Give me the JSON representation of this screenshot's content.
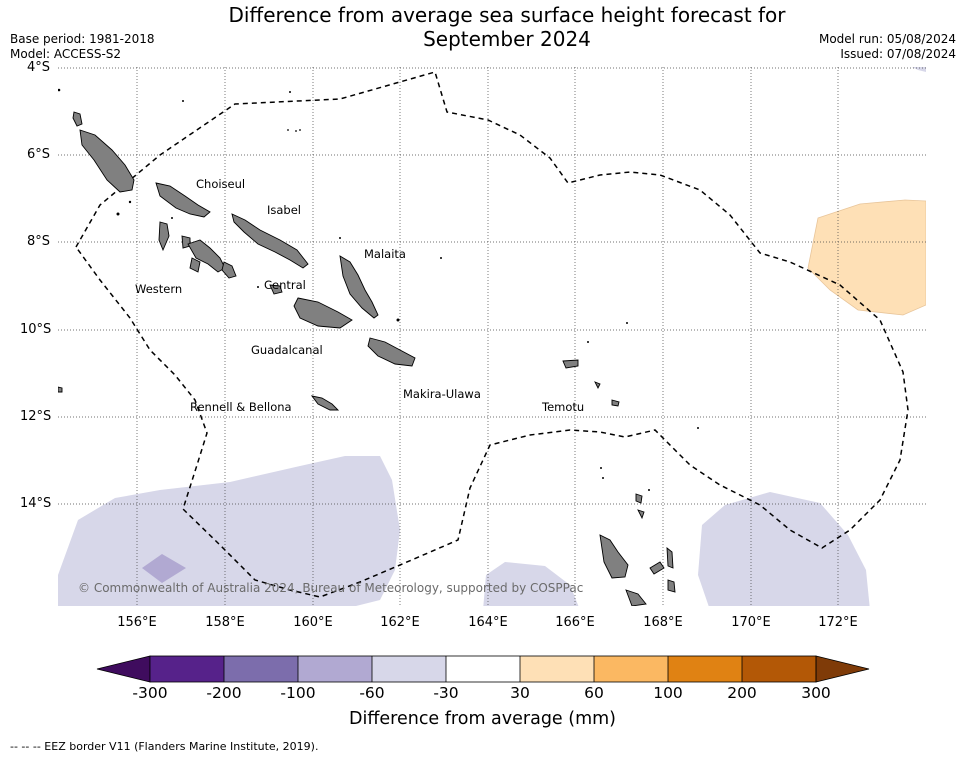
{
  "header": {
    "title_line1": "Difference from average sea surface height forecast for",
    "title_line2": "September 2024",
    "base_period": "Base period: 1981-2018",
    "model": "Model: ACCESS-S2",
    "model_run": "Model run: 05/08/2024",
    "issued": "Issued: 07/08/2024"
  },
  "map": {
    "latitude_labels": [
      "4°S",
      "6°S",
      "8°S",
      "10°S",
      "12°S",
      "14°S"
    ],
    "longitude_labels": [
      "156°E",
      "158°E",
      "160°E",
      "162°E",
      "164°E",
      "166°E",
      "168°E",
      "170°E",
      "172°E"
    ],
    "province_labels": [
      "Choiseul",
      "Isabel",
      "Malaita",
      "Western",
      "Central",
      "Guadalcanal",
      "Makira-Ulawa",
      "Rennell & Bellona",
      "Temotu"
    ],
    "copyright": "© Commonwealth of Australia 2024, Bureau of Meteorology, supported by COSPPac"
  },
  "colorbar": {
    "ticks": [
      "-300",
      "-200",
      "-100",
      "-60",
      "-30",
      "30",
      "60",
      "100",
      "200",
      "300"
    ],
    "colors": [
      "#3f0c5e",
      "#56228a",
      "#7c6dac",
      "#b1a9d2",
      "#d7d7e9",
      "#ffffff",
      "#fee0b6",
      "#fbb862",
      "#e08213",
      "#b35806",
      "#7f3b08"
    ],
    "label": "Difference from average (mm)"
  },
  "footnote": "--  --  -- EEZ border V11 (Flanders Marine Institute, 2019)."
}
